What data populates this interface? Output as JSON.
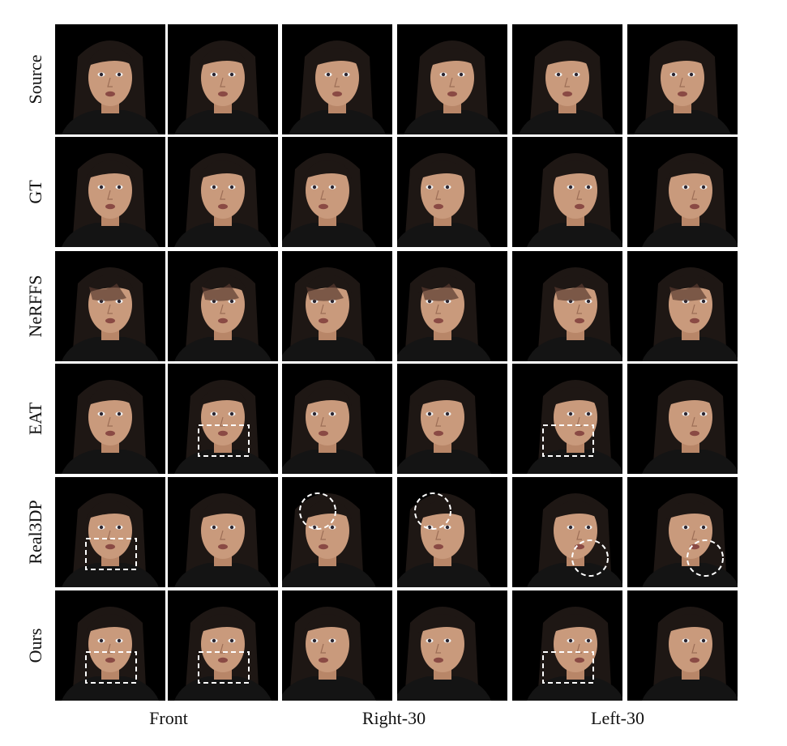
{
  "row_labels": [
    "Source",
    "GT",
    "NeRFFS",
    "EAT",
    "Real3DP",
    "Ours"
  ],
  "column_groups": [
    "Front",
    "Right-30",
    "Left-30"
  ],
  "colors": {
    "background": "#000000",
    "skin": "#c99a7c",
    "hair": "#1e1714",
    "shirt": "#141414",
    "annotation": "#ffffff"
  },
  "cells": [
    [
      {
        "pose": "front"
      },
      {
        "pose": "front"
      },
      {
        "pose": "front"
      },
      {
        "pose": "front"
      },
      {
        "pose": "front"
      },
      {
        "pose": "front"
      }
    ],
    [
      {
        "pose": "front"
      },
      {
        "pose": "front"
      },
      {
        "pose": "right"
      },
      {
        "pose": "right"
      },
      {
        "pose": "left"
      },
      {
        "pose": "left"
      }
    ],
    [
      {
        "pose": "front",
        "artifact": true
      },
      {
        "pose": "front",
        "artifact": true
      },
      {
        "pose": "right",
        "artifact": true
      },
      {
        "pose": "right",
        "artifact": true
      },
      {
        "pose": "left",
        "artifact": true
      },
      {
        "pose": "left",
        "artifact": true
      }
    ],
    [
      {
        "pose": "front"
      },
      {
        "pose": "front",
        "marker": "rect"
      },
      {
        "pose": "right"
      },
      {
        "pose": "right"
      },
      {
        "pose": "left",
        "marker": "rect"
      },
      {
        "pose": "left"
      }
    ],
    [
      {
        "pose": "front",
        "marker": "rect"
      },
      {
        "pose": "front"
      },
      {
        "pose": "right",
        "marker": "circle"
      },
      {
        "pose": "right",
        "marker": "circle"
      },
      {
        "pose": "left",
        "marker": "circle"
      },
      {
        "pose": "left",
        "marker": "circle"
      }
    ],
    [
      {
        "pose": "front",
        "marker": "rect"
      },
      {
        "pose": "front",
        "marker": "rect"
      },
      {
        "pose": "right"
      },
      {
        "pose": "right"
      },
      {
        "pose": "left",
        "marker": "rect"
      },
      {
        "pose": "left"
      }
    ]
  ]
}
